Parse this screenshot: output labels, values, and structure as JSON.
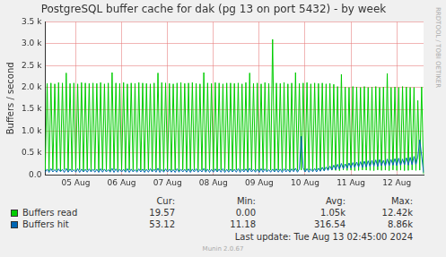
{
  "chart_data": {
    "type": "line",
    "title": "PostgreSQL buffer cache for dak (pg 13 on port 5432) - by week",
    "y_label": "Buffers / second",
    "categories": [
      null,
      null,
      null,
      null,
      null,
      null,
      null,
      null,
      null,
      null,
      null,
      null,
      null,
      null,
      null,
      null,
      "05 Aug",
      null,
      null,
      null,
      null,
      null,
      null,
      null,
      null,
      null,
      null,
      null,
      null,
      null,
      null,
      null,
      null,
      null,
      null,
      null,
      null,
      null,
      null,
      null,
      "06 Aug",
      null,
      null,
      null,
      null,
      null,
      null,
      null,
      null,
      null,
      null,
      null,
      null,
      null,
      null,
      null,
      null,
      null,
      null,
      null,
      null,
      null,
      null,
      null,
      "07 Aug",
      null,
      null,
      null,
      null,
      null,
      null,
      null,
      null,
      null,
      null,
      null,
      null,
      null,
      null,
      null,
      null,
      null,
      null,
      null,
      null,
      null,
      null,
      null,
      "08 Aug",
      null,
      null,
      null,
      null,
      null,
      null,
      null,
      null,
      null,
      null,
      null,
      null,
      null,
      null,
      null,
      null,
      null,
      null,
      null,
      null,
      null,
      null,
      null,
      "09 Aug",
      null,
      null,
      null,
      null,
      null,
      null,
      null,
      null,
      null,
      null,
      null,
      null,
      null,
      null,
      null,
      null,
      null,
      null,
      null,
      null,
      null,
      null,
      null,
      "10 Aug",
      null,
      null,
      null,
      null,
      null,
      null,
      null,
      null,
      null,
      null,
      null,
      null,
      null,
      null,
      null,
      null,
      null,
      null,
      null,
      null,
      null,
      null,
      null,
      "11 Aug",
      null,
      null,
      null,
      null,
      null,
      null,
      null,
      null,
      null,
      null,
      null,
      null,
      null,
      null,
      null,
      null,
      null,
      null,
      null,
      null,
      null,
      null,
      null,
      "12 Aug",
      null,
      null,
      null,
      null,
      null,
      null,
      null,
      null,
      null,
      null,
      null,
      null,
      null,
      null
    ],
    "series": [
      {
        "name": "Buffers read",
        "color": "#00cc00",
        "values": [
          105,
          2090,
          95,
          2100,
          110,
          2080,
          100,
          2110,
          90,
          2100,
          120,
          2330,
          95,
          2090,
          105,
          2100,
          100,
          2080,
          115,
          2110,
          90,
          2100,
          105,
          2090,
          100,
          2100,
          110,
          2090,
          95,
          2110,
          105,
          2080,
          100,
          2100,
          90,
          2340,
          115,
          2100,
          100,
          2090,
          105,
          2110,
          95,
          2080,
          110,
          2100,
          100,
          2090,
          95,
          2110,
          105,
          2100,
          100,
          2090,
          110,
          2080,
          95,
          2100,
          105,
          2330,
          100,
          2110,
          90,
          2100,
          110,
          2090,
          100,
          2080,
          105,
          2100,
          95,
          2110,
          110,
          2090,
          100,
          2100,
          95,
          2110,
          105,
          2090,
          100,
          2080,
          110,
          2340,
          95,
          2100,
          105,
          2090,
          100,
          2110,
          90,
          2100,
          110,
          2080,
          100,
          2100,
          100,
          2100,
          95,
          2090,
          110,
          2100,
          100,
          2080,
          105,
          2110,
          95,
          2330,
          110,
          2090,
          100,
          2100,
          95,
          2080,
          105,
          2110,
          100,
          2090,
          105,
          3100,
          95,
          2100,
          105,
          2090,
          100,
          2110,
          110,
          2080,
          95,
          2100,
          105,
          2340,
          100,
          2090,
          110,
          2100,
          95,
          2110,
          105,
          2080,
          100,
          2100,
          110,
          2090,
          100,
          2100,
          95,
          2080,
          110,
          2090,
          105,
          2070,
          100,
          2020,
          95,
          2300,
          110,
          2010,
          100,
          2000,
          105,
          2020,
          95,
          2010,
          100,
          2000,
          110,
          2020,
          105,
          2000,
          100,
          2010,
          95,
          2020,
          110,
          2000,
          100,
          2010,
          105,
          2320,
          95,
          2000,
          110,
          2010,
          100,
          2000,
          105,
          2020,
          95,
          2010,
          100,
          2000,
          110,
          2000,
          100,
          1700,
          105,
          2010,
          20
        ],
        "stats": [
          {
            "value": 19.57,
            "label": "19.57"
          },
          {
            "value": 0,
            "label": "0.00"
          },
          {
            "value": 1050,
            "label": "1.05k"
          },
          {
            "value": 12420,
            "label": "12.42k"
          }
        ]
      },
      {
        "name": "Buffers hit",
        "color": "#0066b3",
        "values": [
          60,
          130,
          55,
          140,
          65,
          120,
          60,
          135,
          70,
          125,
          55,
          145,
          60,
          130,
          65,
          120,
          60,
          140,
          55,
          130,
          65,
          125,
          60,
          135,
          65,
          130,
          60,
          125,
          55,
          140,
          60,
          130,
          65,
          120,
          60,
          145,
          55,
          135,
          60,
          130,
          65,
          125,
          60,
          140,
          55,
          130,
          65,
          120,
          60,
          135,
          65,
          130,
          55,
          125,
          60,
          140,
          65,
          130,
          60,
          150,
          55,
          125,
          60,
          135,
          65,
          130,
          60,
          120,
          55,
          140,
          60,
          130,
          65,
          125,
          60,
          135,
          55,
          130,
          65,
          140,
          60,
          120,
          65,
          145,
          60,
          130,
          55,
          125,
          60,
          135,
          65,
          130,
          60,
          140,
          55,
          125,
          60,
          130,
          65,
          125,
          60,
          140,
          55,
          130,
          65,
          135,
          60,
          150,
          65,
          125,
          60,
          130,
          55,
          140,
          60,
          135,
          65,
          120,
          60,
          130,
          65,
          135,
          60,
          130,
          55,
          140,
          65,
          125,
          60,
          135,
          70,
          150,
          60,
          130,
          880,
          160,
          65,
          140,
          60,
          135,
          70,
          145,
          65,
          150,
          80,
          170,
          90,
          180,
          100,
          200,
          110,
          220,
          120,
          240,
          130,
          260,
          140,
          250,
          150,
          270,
          160,
          280,
          170,
          290,
          180,
          300,
          170,
          310,
          180,
          320,
          190,
          330,
          200,
          340,
          190,
          350,
          210,
          330,
          200,
          360,
          210,
          350,
          220,
          370,
          210,
          380,
          220,
          360,
          230,
          390,
          220,
          400,
          230,
          420,
          240,
          410,
          800,
          430,
          53
        ],
        "stats": [
          {
            "value": 53.12,
            "label": "53.12"
          },
          {
            "value": 11.18,
            "label": "11.18"
          },
          {
            "value": 316.54,
            "label": "316.54"
          },
          {
            "value": 8860,
            "label": "8.86k"
          }
        ]
      }
    ],
    "stat_columns": [
      "Cur:",
      "Min:",
      "Avg:",
      "Max:"
    ],
    "ylim": [
      0,
      3500
    ],
    "yticks": [
      {
        "value": 0,
        "label": "0.0"
      },
      {
        "value": 500,
        "label": "0.5 k"
      },
      {
        "value": 1000,
        "label": "1.0 k"
      },
      {
        "value": 1500,
        "label": "1.5 k"
      },
      {
        "value": 2000,
        "label": "2.0 k"
      },
      {
        "value": 2500,
        "label": "2.5 k"
      },
      {
        "value": 3000,
        "label": "3.0 k"
      },
      {
        "value": 3500,
        "label": "3.5 k"
      }
    ],
    "grid": true,
    "legend": "bottom",
    "footer": "Last update: Tue Aug 13 02:45:00 2024",
    "generator": "Munin 2.0.67",
    "side_text": "RRDTOOL / TOBI OETIKER"
  }
}
